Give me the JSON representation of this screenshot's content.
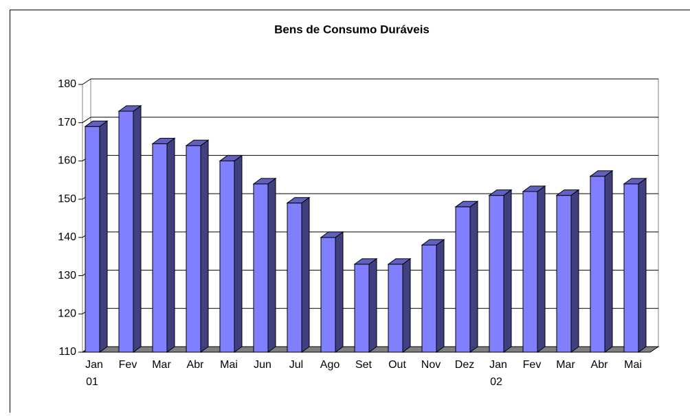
{
  "chart_data": {
    "type": "bar3d",
    "title": "Bens de Consumo Duráveis",
    "categories": [
      "Jan",
      "Fev",
      "Mar",
      "Abr",
      "Mai",
      "Jun",
      "Jul",
      "Ago",
      "Set",
      "Out",
      "Nov",
      "Dez",
      "Jan",
      "Fev",
      "Mar",
      "Abr",
      "Mai"
    ],
    "year_labels": [
      "01",
      null,
      null,
      null,
      null,
      null,
      null,
      null,
      null,
      null,
      null,
      null,
      "02",
      null,
      null,
      null,
      null
    ],
    "values": [
      169,
      173,
      164.5,
      164,
      160,
      154,
      149,
      140,
      133,
      133,
      138,
      148,
      151,
      152,
      151,
      156,
      154
    ],
    "color": "#8080ff",
    "ylim": [
      110,
      180
    ],
    "yticks": [
      110,
      120,
      130,
      140,
      150,
      160,
      170,
      180
    ],
    "grid": true
  }
}
